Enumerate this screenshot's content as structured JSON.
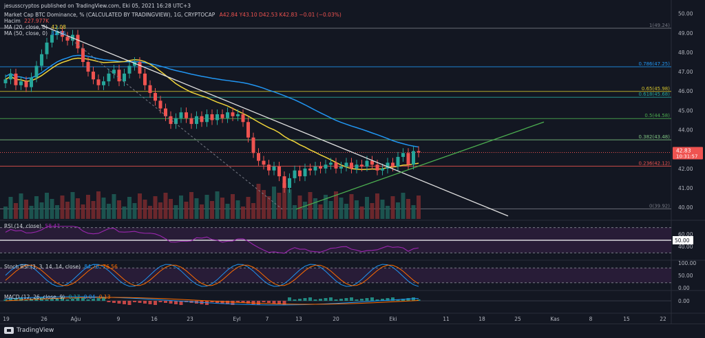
{
  "header": {
    "published": "jesusscryptos published on TradingView.com, Eki 05, 2021 16:28 UTC+3",
    "symbol": "Market Cap BTC Dominance, % (CALCULATED BY TRADINGVIEW), 1G, CRYPTOCAP",
    "ohlc": "A42.84  Y43.10  D42.53  K42.83  −0.01 (−0.03%)",
    "volume_label": "Hacim",
    "volume_value": "227.977K",
    "ma20_label": "MA (20, close, 0)",
    "ma20_value": "42.08",
    "ma50_label": "MA (50, close, 0)",
    "ma50_value": "42.56"
  },
  "price_axis": {
    "labels": [
      "50.00",
      "49.00",
      "48.00",
      "47.00",
      "46.00",
      "45.00",
      "44.00",
      "43.00",
      "42.00",
      "41.00",
      "40.00"
    ],
    "current_price": "42.83",
    "countdown": "10:31:57"
  },
  "fib_levels": [
    {
      "label": "1(49.24)",
      "value": 49.24,
      "color": "#787b86"
    },
    {
      "label": "0.786(47.25)",
      "value": 47.25,
      "color": "#2196f3"
    },
    {
      "label": "0.65(45.98)",
      "value": 45.98,
      "color": "#d4c32c"
    },
    {
      "label": "0.618(45.68)",
      "value": 45.68,
      "color": "#26a69a"
    },
    {
      "label": "0.5(44.58)",
      "value": 44.58,
      "color": "#4caf50"
    },
    {
      "label": "0.382(43.48)",
      "value": 43.48,
      "color": "#81c784"
    },
    {
      "label": "0.236(42.12)",
      "value": 42.12,
      "color": "#ef5350"
    },
    {
      "label": "0(39.92)",
      "value": 39.92,
      "color": "#787b86"
    }
  ],
  "rsi": {
    "label": "RSI (14, close)",
    "value": "58.47",
    "axis": [
      "60.00",
      "50.00",
      "40.00"
    ]
  },
  "stoch": {
    "label": "Stoch RSI (3, 3, 14, 14, close)",
    "k": "84.76",
    "d": "76.56",
    "axis": [
      "100.00",
      "50.00",
      "0.00"
    ]
  },
  "macd": {
    "label": "MACD (12, 26, close, 9)",
    "v1": "0.17",
    "v2": "0.04",
    "v3": "0.13",
    "axis": [
      "0.00"
    ]
  },
  "time_axis": [
    "19",
    "26",
    "Ağu",
    "9",
    "16",
    "23",
    "Eyl",
    "7",
    "13",
    "20",
    "Eki",
    "11",
    "18",
    "25",
    "Kas",
    "8",
    "15",
    "22"
  ],
  "footer": {
    "brand": "TradingView"
  },
  "chart_data": {
    "type": "candlestick",
    "title": "Market Cap BTC Dominance, % (CALCULATED BY TRADINGVIEW), 1G, CRYPTOCAP",
    "ylim": [
      39.4,
      50.2
    ],
    "closes": [
      46.6,
      46.9,
      46.3,
      46.5,
      46.2,
      46.7,
      47.3,
      47.9,
      48.5,
      48.9,
      49.1,
      48.8,
      48.6,
      48.9,
      48.2,
      47.5,
      47.0,
      46.6,
      46.3,
      46.5,
      46.9,
      47.1,
      46.5,
      46.9,
      47.3,
      47.5,
      46.9,
      46.3,
      45.9,
      45.5,
      45.1,
      44.7,
      44.3,
      44.6,
      44.9,
      44.6,
      44.3,
      44.7,
      44.4,
      44.8,
      44.5,
      44.8,
      44.6,
      44.9,
      44.7,
      44.8,
      44.4,
      43.6,
      42.8,
      42.4,
      42.2,
      41.9,
      42.1,
      41.6,
      41.0,
      41.5,
      41.9,
      41.6,
      42.0,
      41.9,
      42.1,
      42.0,
      42.2,
      42.3,
      42.0,
      42.1,
      42.3,
      42.0,
      42.2,
      42.1,
      42.4,
      42.2,
      41.9,
      42.0,
      42.3,
      42.1,
      42.6,
      42.8,
      42.2,
      42.9,
      42.83
    ],
    "volume_label": "Hacim"
  }
}
